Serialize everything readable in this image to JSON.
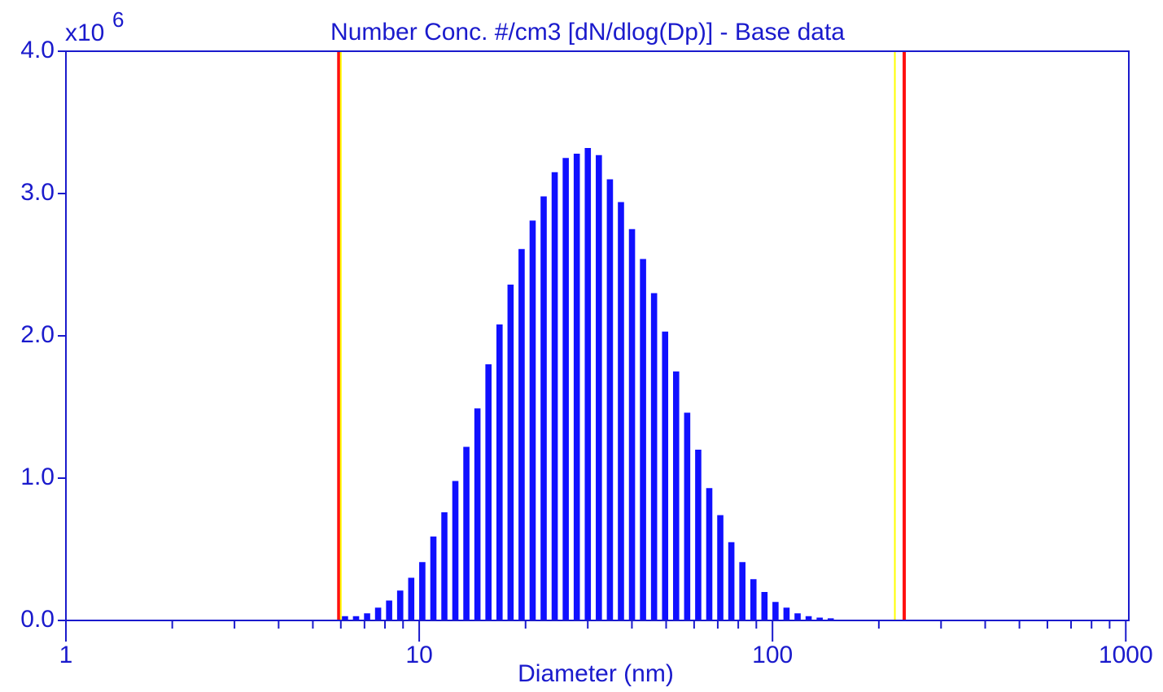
{
  "chart_data": {
    "type": "histogram",
    "title": "Number Conc. #/cm3 [dN/dlog(Dp)] - Base data",
    "y_multiplier": {
      "base": "x10",
      "exponent": "6"
    },
    "xlabel": "Diameter (nm)",
    "xscale": "log",
    "xlim": [
      1,
      1020
    ],
    "ylim": [
      0,
      4
    ],
    "xticks": [
      1,
      10,
      100,
      1000
    ],
    "xminor_ticks": [
      2,
      3,
      4,
      5,
      6,
      7,
      8,
      9,
      20,
      30,
      40,
      50,
      60,
      70,
      80,
      90,
      200,
      300,
      400,
      500,
      600,
      700,
      800,
      900
    ],
    "yticks": [
      {
        "value": 0,
        "label": "0.0"
      },
      {
        "value": 1,
        "label": "1.0"
      },
      {
        "value": 2,
        "label": "2.0"
      },
      {
        "value": 3,
        "label": "3.0"
      },
      {
        "value": 4,
        "label": "4.0"
      }
    ],
    "color": "#1010ff",
    "bins": [
      5.95,
      6.39,
      6.87,
      7.38,
      7.93,
      8.52,
      9.16,
      9.84,
      10.58,
      11.37,
      12.21,
      13.12,
      14.1,
      15.15,
      16.28,
      17.5,
      18.8,
      20.21,
      21.71,
      23.33,
      25.07,
      26.94,
      28.95,
      31.11,
      33.43,
      35.93,
      38.61,
      41.49,
      44.58,
      47.91,
      51.48,
      55.32,
      59.45,
      63.89,
      68.65,
      73.77,
      79.28,
      85.19,
      91.55,
      98.38,
      105.7,
      113.6,
      122.1,
      131.2,
      141.0,
      151.5
    ],
    "counts": [
      0.03,
      0.03,
      0.05,
      0.09,
      0.14,
      0.21,
      0.3,
      0.41,
      0.59,
      0.76,
      0.98,
      1.22,
      1.49,
      1.8,
      2.08,
      2.36,
      2.61,
      2.81,
      2.98,
      3.15,
      3.25,
      3.28,
      3.32,
      3.27,
      3.1,
      2.94,
      2.75,
      2.54,
      2.3,
      2.03,
      1.75,
      1.46,
      1.2,
      0.93,
      0.74,
      0.55,
      0.41,
      0.29,
      0.2,
      0.13,
      0.09,
      0.05,
      0.03,
      0.02,
      0.015
    ],
    "markers": [
      {
        "x": 5.92,
        "color": "#ff1010"
      },
      {
        "x": 6.0,
        "color": "#ffff00"
      },
      {
        "x": 222,
        "color": "#ffff00"
      },
      {
        "x": 236,
        "color": "#ff1010"
      }
    ]
  }
}
